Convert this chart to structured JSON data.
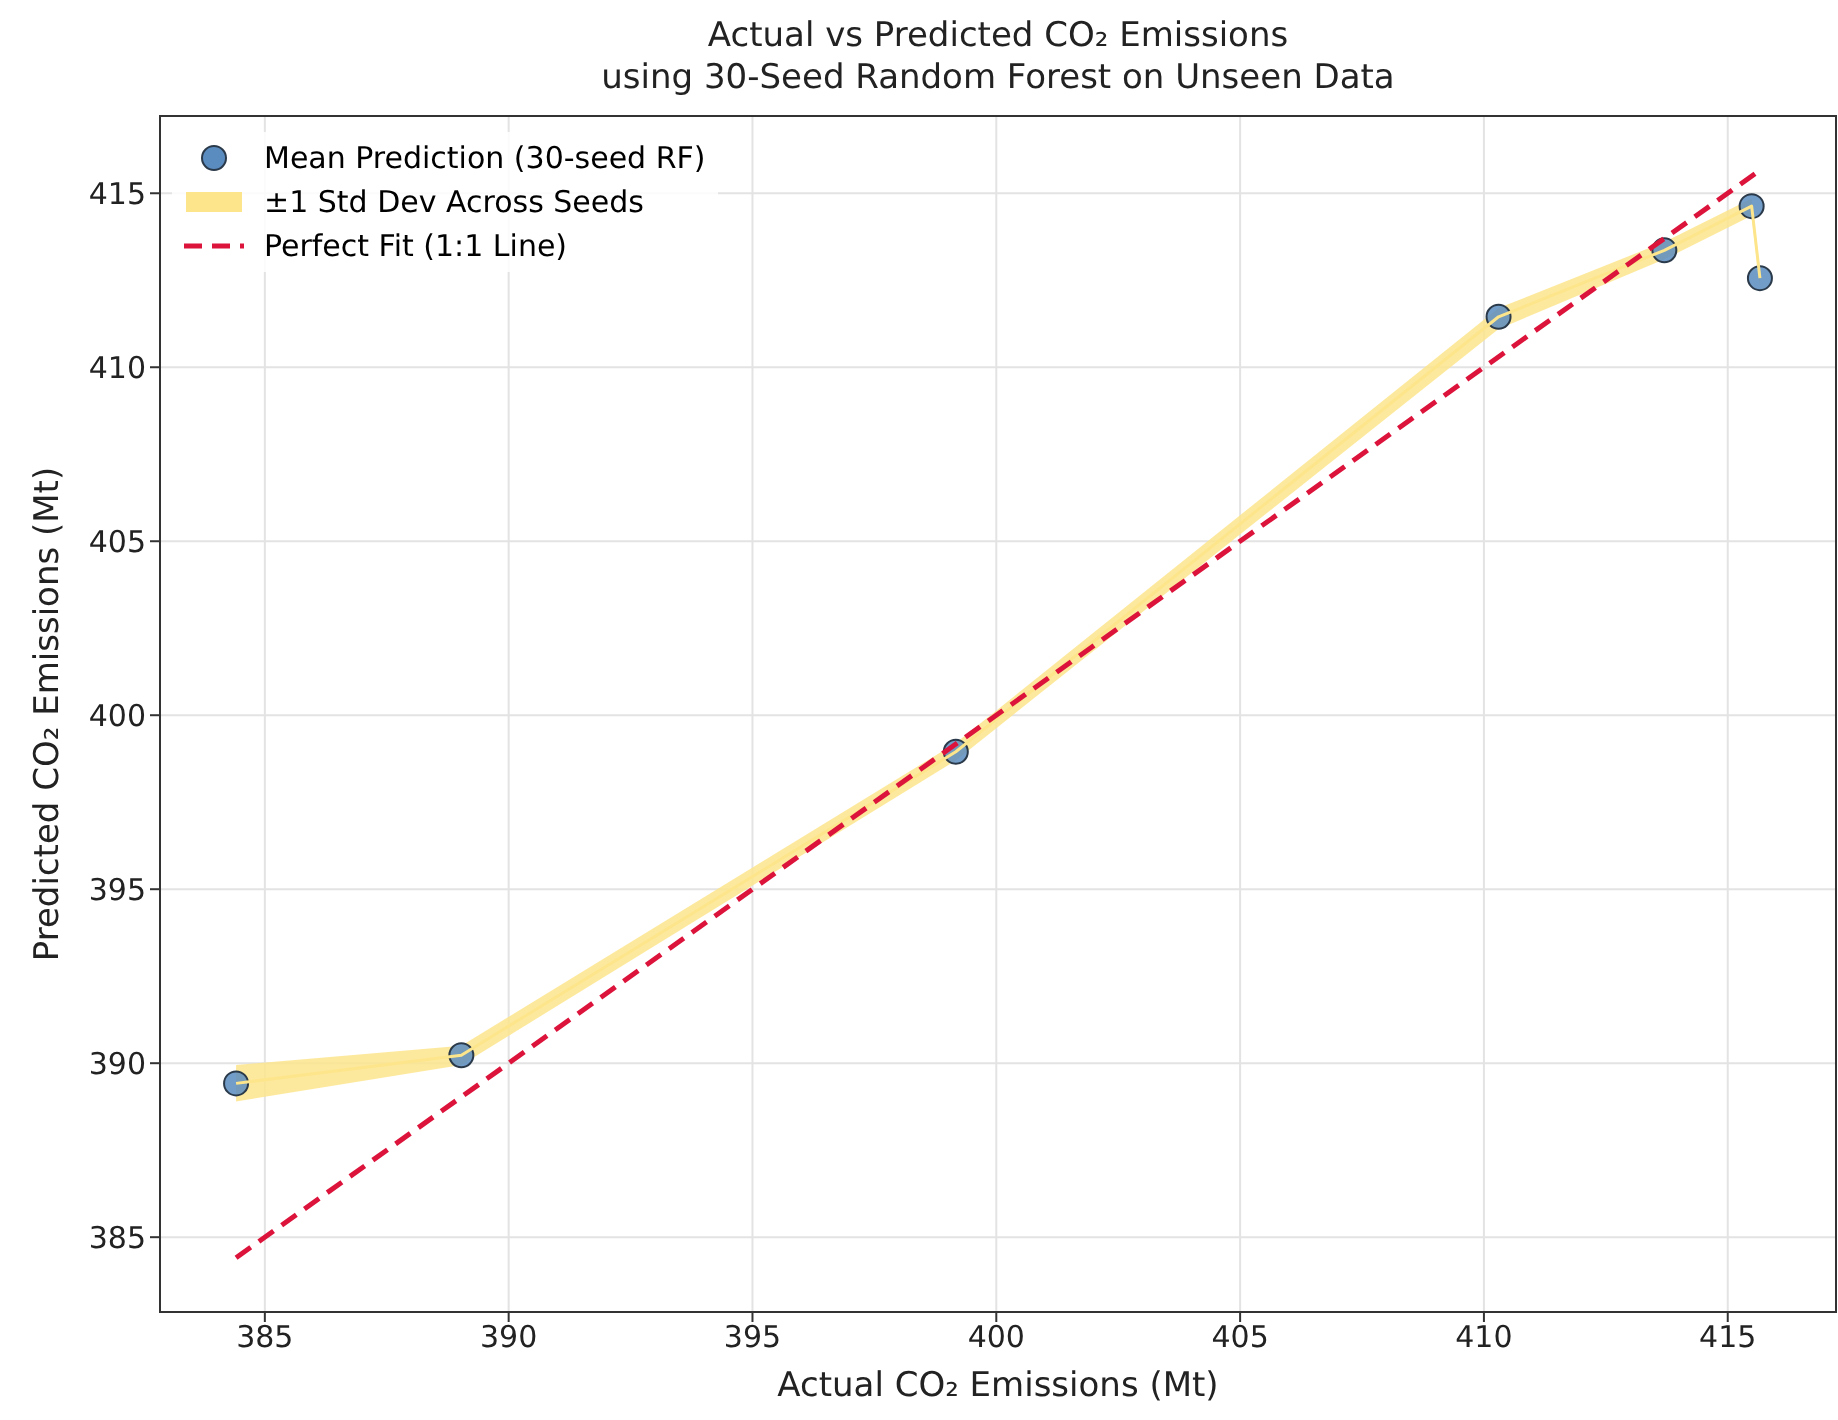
{
  "chart_data": {
    "type": "scatter",
    "title": "Actual vs Predicted CO₂ Emissions\nusing 30-Seed Random Forest on Unseen Data",
    "xlabel": "Actual CO₂ Emissions (Mt)",
    "ylabel": "Predicted CO₂ Emissions (Mt)",
    "x": [
      384.41,
      389.03,
      399.17,
      410.3,
      413.7,
      415.49,
      415.66
    ],
    "series": [
      {
        "name": "Mean Prediction (30-seed RF)",
        "color": "#5b8cc0",
        "marker": "circle",
        "values": [
          389.42,
          390.23,
          398.95,
          411.45,
          413.36,
          414.63,
          412.56
        ]
      },
      {
        "name": "±1 Std Dev Across Seeds",
        "type": "line",
        "color": "#fde58c",
        "values": [
          389.42,
          390.23,
          398.95,
          411.45,
          413.36,
          414.63,
          412.56
        ],
        "lower": [
          388.9,
          389.95,
          398.7,
          411.1,
          413.1,
          414.35,
          412.3
        ],
        "upper": [
          389.95,
          390.5,
          399.2,
          411.7,
          413.6,
          414.85,
          412.8
        ]
      },
      {
        "name": "Perfect Fit (1:1 Line)",
        "type": "line",
        "color": "#dc143c",
        "line_style": "dashed",
        "marker": "none",
        "x": [
          384.41,
          415.66
        ],
        "values": [
          384.41,
          415.66
        ]
      }
    ],
    "xlim": [
      382.85,
      417.22
    ],
    "ylim": [
      382.85,
      417.22
    ],
    "xticks": [
      385,
      390,
      395,
      400,
      405,
      410,
      415
    ],
    "yticks": [
      385,
      390,
      395,
      400,
      405,
      410,
      415
    ],
    "grid": true,
    "legend": "top left"
  }
}
